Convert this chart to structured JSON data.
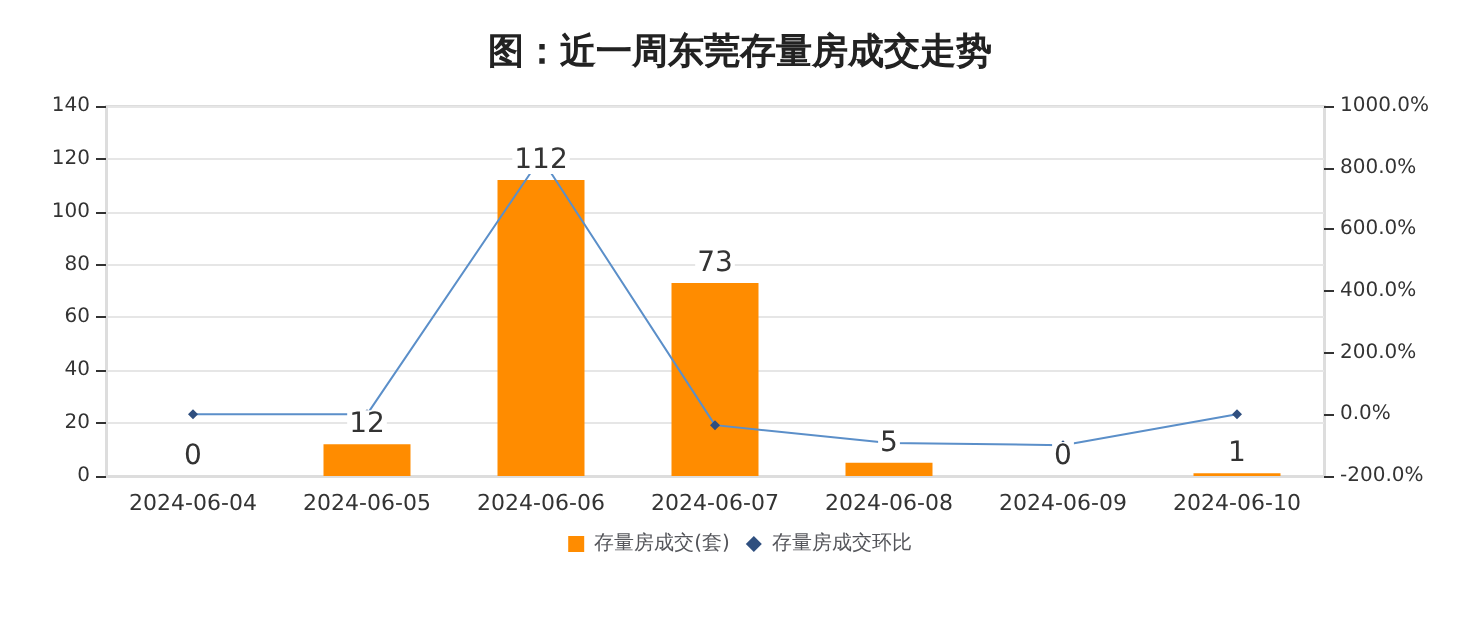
{
  "chart_data": {
    "type": "bar",
    "title": "图：近一周东莞存量房成交走势",
    "categories": [
      "2024-06-04",
      "2024-06-05",
      "2024-06-06",
      "2024-06-07",
      "2024-06-08",
      "2024-06-09",
      "2024-06-10"
    ],
    "series": [
      {
        "name": "存量房成交(套)",
        "color": "#ff8c00",
        "values": [
          0,
          12,
          112,
          73,
          5,
          0,
          1
        ],
        "data_labels": true
      },
      {
        "name": "存量房成交环比",
        "type": "line",
        "axis": "y2",
        "color": "#5b8fc9",
        "marker": "diamond",
        "values": [
          0,
          0,
          833,
          -35,
          -93,
          -100,
          0
        ]
      }
    ],
    "ylim": [
      0,
      140
    ],
    "yticks": [
      0,
      20,
      40,
      60,
      80,
      100,
      120,
      140
    ],
    "y2lim": [
      -200,
      1000
    ],
    "y2ticks": [
      {
        "value": -200,
        "label": "-200.0%"
      },
      {
        "value": 0,
        "label": "0.0%"
      },
      {
        "value": 200,
        "label": "200.0%"
      },
      {
        "value": 400,
        "label": "400.0%"
      },
      {
        "value": 600,
        "label": "600.0%"
      },
      {
        "value": 800,
        "label": "800.0%"
      },
      {
        "value": 1000,
        "label": "1000.0%"
      }
    ],
    "grid": "y",
    "legend": "bottom"
  }
}
